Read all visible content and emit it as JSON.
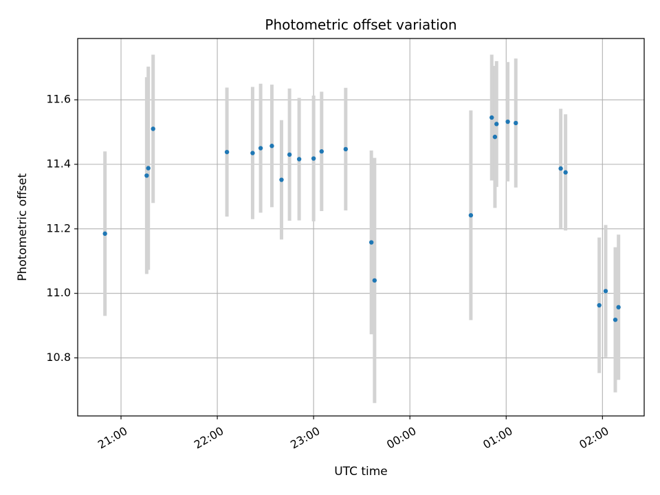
{
  "chart_data": {
    "type": "scatter",
    "title": "Photometric offset variation",
    "xlabel": "UTC time",
    "ylabel": "Photometric offset",
    "x_tick_labels": [
      "21:00",
      "22:00",
      "23:00",
      "00:00",
      "01:00",
      "02:00"
    ],
    "y_tick_labels": [
      "10.8",
      "11.0",
      "11.2",
      "11.4",
      "11.6"
    ],
    "xlim": [
      "20:33",
      "02:26"
    ],
    "ylim": [
      10.62,
      11.79
    ],
    "grid": true,
    "colors": {
      "point": "#1f77b4",
      "errorbar": "#d3d3d3",
      "grid": "#b0b0b0"
    },
    "points": [
      {
        "x": "20:50",
        "y": 11.185,
        "err": 0.255
      },
      {
        "x": "21:16",
        "y": 11.365,
        "err": 0.305
      },
      {
        "x": "21:17",
        "y": 11.388,
        "err": 0.315
      },
      {
        "x": "21:20",
        "y": 11.51,
        "err": 0.23
      },
      {
        "x": "22:06",
        "y": 11.438,
        "err": 0.2
      },
      {
        "x": "22:22",
        "y": 11.435,
        "err": 0.205
      },
      {
        "x": "22:27",
        "y": 11.45,
        "err": 0.2
      },
      {
        "x": "22:34",
        "y": 11.457,
        "err": 0.19
      },
      {
        "x": "22:40",
        "y": 11.352,
        "err": 0.185
      },
      {
        "x": "22:45",
        "y": 11.43,
        "err": 0.205
      },
      {
        "x": "22:51",
        "y": 11.416,
        "err": 0.19
      },
      {
        "x": "23:00",
        "y": 11.418,
        "err": 0.195
      },
      {
        "x": "23:05",
        "y": 11.44,
        "err": 0.185
      },
      {
        "x": "23:20",
        "y": 11.447,
        "err": 0.19
      },
      {
        "x": "23:36",
        "y": 11.158,
        "err": 0.285
      },
      {
        "x": "23:38",
        "y": 11.04,
        "err": 0.38
      },
      {
        "x": "00:38",
        "y": 11.242,
        "err": 0.325
      },
      {
        "x": "00:51",
        "y": 11.545,
        "err": 0.195
      },
      {
        "x": "00:53",
        "y": 11.485,
        "err": 0.22
      },
      {
        "x": "00:54",
        "y": 11.525,
        "err": 0.195
      },
      {
        "x": "01:01",
        "y": 11.532,
        "err": 0.185
      },
      {
        "x": "01:06",
        "y": 11.528,
        "err": 0.2
      },
      {
        "x": "01:34",
        "y": 11.387,
        "err": 0.185
      },
      {
        "x": "01:37",
        "y": 11.375,
        "err": 0.18
      },
      {
        "x": "01:58",
        "y": 10.963,
        "err": 0.21
      },
      {
        "x": "02:02",
        "y": 11.007,
        "err": 0.205
      },
      {
        "x": "02:08",
        "y": 10.918,
        "err": 0.225
      },
      {
        "x": "02:10",
        "y": 10.957,
        "err": 0.225
      }
    ]
  }
}
